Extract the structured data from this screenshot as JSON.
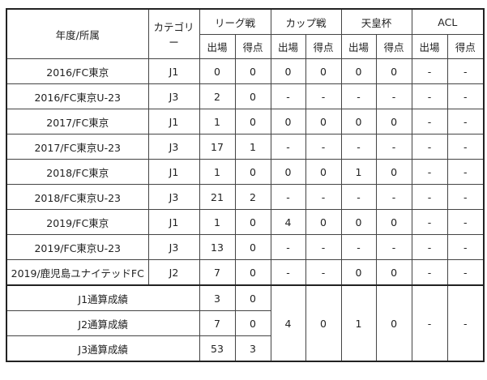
{
  "header": {
    "season_club": "年度/所属",
    "category": "カテゴリー",
    "competitions": [
      "リーグ戦",
      "カップ戦",
      "天皇杯",
      "ACL"
    ],
    "sub": [
      "出場",
      "得点"
    ]
  },
  "rows": [
    {
      "season": "2016/FC東京",
      "cat": "J1",
      "vals": [
        "0",
        "0",
        "0",
        "0",
        "0",
        "0",
        "-",
        "-"
      ]
    },
    {
      "season": "2016/FC東京U-23",
      "cat": "J3",
      "vals": [
        "2",
        "0",
        "-",
        "-",
        "-",
        "-",
        "-",
        "-"
      ]
    },
    {
      "season": "2017/FC東京",
      "cat": "J1",
      "vals": [
        "1",
        "0",
        "0",
        "0",
        "0",
        "0",
        "-",
        "-"
      ]
    },
    {
      "season": "2017/FC東京U-23",
      "cat": "J3",
      "vals": [
        "17",
        "1",
        "-",
        "-",
        "-",
        "-",
        "-",
        "-"
      ]
    },
    {
      "season": "2018/FC東京",
      "cat": "J1",
      "vals": [
        "1",
        "0",
        "0",
        "0",
        "1",
        "0",
        "-",
        "-"
      ]
    },
    {
      "season": "2018/FC東京U-23",
      "cat": "J3",
      "vals": [
        "21",
        "2",
        "-",
        "-",
        "-",
        "-",
        "-",
        "-"
      ]
    },
    {
      "season": "2019/FC東京",
      "cat": "J1",
      "vals": [
        "1",
        "0",
        "4",
        "0",
        "0",
        "0",
        "-",
        "-"
      ]
    },
    {
      "season": "2019/FC東京U-23",
      "cat": "J3",
      "vals": [
        "13",
        "0",
        "-",
        "-",
        "-",
        "-",
        "-",
        "-"
      ]
    },
    {
      "season": "2019/鹿児島ユナイテッドFC",
      "cat": "J2",
      "vals": [
        "7",
        "0",
        "-",
        "-",
        "0",
        "0",
        "-",
        "-"
      ]
    }
  ],
  "totals": {
    "rows": [
      {
        "label": "J1通算成績",
        "apps": "3",
        "goals": "0"
      },
      {
        "label": "J2通算成績",
        "apps": "7",
        "goals": "0"
      },
      {
        "label": "J3通算成績",
        "apps": "53",
        "goals": "3"
      }
    ],
    "shared": [
      "4",
      "0",
      "1",
      "0",
      "-",
      "-"
    ]
  }
}
